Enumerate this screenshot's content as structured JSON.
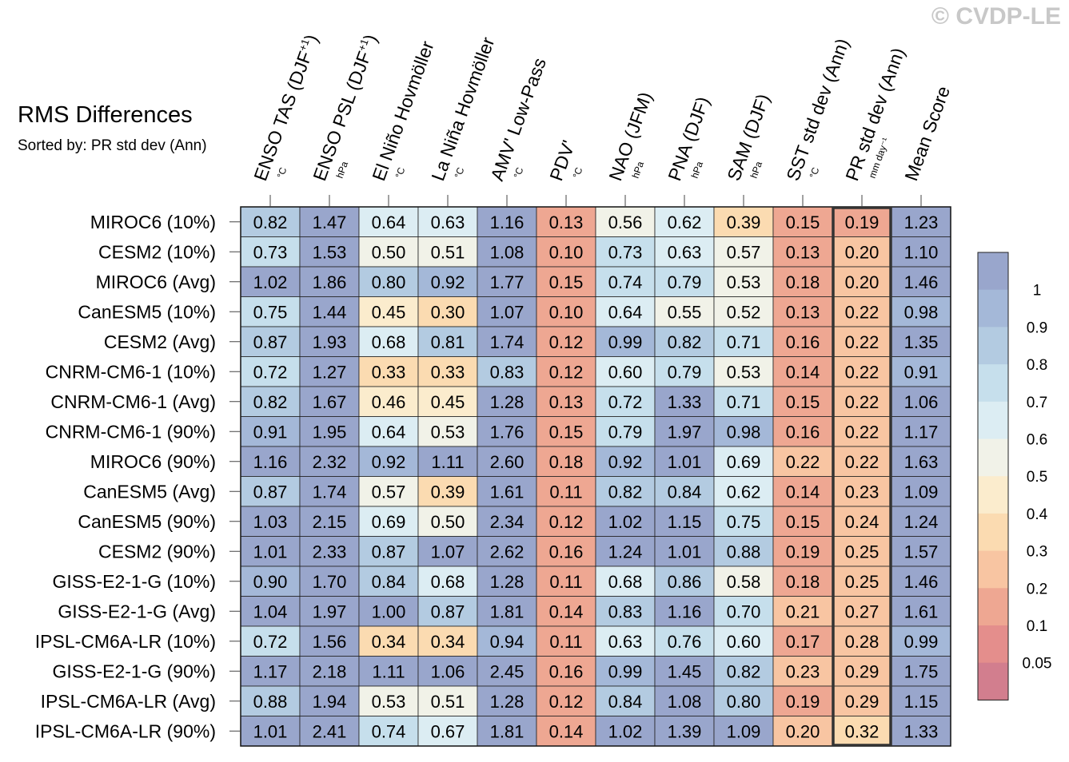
{
  "watermark": "© CVDP-LE",
  "chart_data": {
    "type": "heatmap",
    "title": "RMS Differences",
    "subtitle": "Sorted by: PR std dev (Ann)",
    "columns": [
      {
        "name": "ENSO TAS (DJF",
        "sup": "+1",
        "close": ")",
        "unit": "°C"
      },
      {
        "name": "ENSO PSL (DJF",
        "sup": "+1",
        "close": ")",
        "unit": "hPa"
      },
      {
        "name": "El Niño Hovmöller",
        "sup": "",
        "close": "",
        "unit": "°C"
      },
      {
        "name": "La Niña Hovmöller",
        "sup": "",
        "close": "",
        "unit": "°C"
      },
      {
        "name": "AMV' Low-Pass",
        "sup": "",
        "close": "",
        "unit": "°C"
      },
      {
        "name": "PDV'",
        "sup": "",
        "close": "",
        "unit": "°C"
      },
      {
        "name": "NAO (JFM)",
        "sup": "",
        "close": "",
        "unit": "hPa"
      },
      {
        "name": "PNA (DJF)",
        "sup": "",
        "close": "",
        "unit": "hPa"
      },
      {
        "name": "SAM (DJF)",
        "sup": "",
        "close": "",
        "unit": "hPa"
      },
      {
        "name": "SST std dev (Ann)",
        "sup": "",
        "close": "",
        "unit": "°C"
      },
      {
        "name": "PR std dev (Ann)",
        "sup": "",
        "close": "",
        "unit": "mm day⁻¹"
      },
      {
        "name": "Mean Score",
        "sup": "",
        "close": "",
        "unit": ""
      }
    ],
    "rows": [
      "MIROC6 (10%)",
      "CESM2 (10%)",
      "MIROC6 (Avg)",
      "CanESM5 (10%)",
      "CESM2 (Avg)",
      "CNRM-CM6-1 (10%)",
      "CNRM-CM6-1 (Avg)",
      "CNRM-CM6-1 (90%)",
      "MIROC6 (90%)",
      "CanESM5 (Avg)",
      "CanESM5 (90%)",
      "CESM2 (90%)",
      "GISS-E2-1-G (10%)",
      "GISS-E2-1-G (Avg)",
      "IPSL-CM6A-LR (10%)",
      "GISS-E2-1-G (90%)",
      "IPSL-CM6A-LR (Avg)",
      "IPSL-CM6A-LR (90%)"
    ],
    "values": [
      [
        "0.82",
        "1.47",
        "0.64",
        "0.63",
        "1.16",
        "0.13",
        "0.56",
        "0.62",
        "0.39",
        "0.15",
        "0.19",
        "1.23"
      ],
      [
        "0.73",
        "1.53",
        "0.50",
        "0.51",
        "1.08",
        "0.10",
        "0.73",
        "0.63",
        "0.57",
        "0.13",
        "0.20",
        "1.10"
      ],
      [
        "1.02",
        "1.86",
        "0.80",
        "0.92",
        "1.77",
        "0.15",
        "0.74",
        "0.79",
        "0.53",
        "0.18",
        "0.20",
        "1.46"
      ],
      [
        "0.75",
        "1.44",
        "0.45",
        "0.30",
        "1.07",
        "0.10",
        "0.64",
        "0.55",
        "0.52",
        "0.13",
        "0.22",
        "0.98"
      ],
      [
        "0.87",
        "1.93",
        "0.68",
        "0.81",
        "1.74",
        "0.12",
        "0.99",
        "0.82",
        "0.71",
        "0.16",
        "0.22",
        "1.35"
      ],
      [
        "0.72",
        "1.27",
        "0.33",
        "0.33",
        "0.83",
        "0.12",
        "0.60",
        "0.79",
        "0.53",
        "0.14",
        "0.22",
        "0.91"
      ],
      [
        "0.82",
        "1.67",
        "0.46",
        "0.45",
        "1.28",
        "0.13",
        "0.72",
        "1.33",
        "0.71",
        "0.15",
        "0.22",
        "1.06"
      ],
      [
        "0.91",
        "1.95",
        "0.64",
        "0.53",
        "1.76",
        "0.15",
        "0.79",
        "1.97",
        "0.98",
        "0.16",
        "0.22",
        "1.17"
      ],
      [
        "1.16",
        "2.32",
        "0.92",
        "1.11",
        "2.60",
        "0.18",
        "0.92",
        "1.01",
        "0.69",
        "0.22",
        "0.22",
        "1.63"
      ],
      [
        "0.87",
        "1.74",
        "0.57",
        "0.39",
        "1.61",
        "0.11",
        "0.82",
        "0.84",
        "0.62",
        "0.14",
        "0.23",
        "1.09"
      ],
      [
        "1.03",
        "2.15",
        "0.69",
        "0.50",
        "2.34",
        "0.12",
        "1.02",
        "1.15",
        "0.75",
        "0.15",
        "0.24",
        "1.24"
      ],
      [
        "1.01",
        "2.33",
        "0.87",
        "1.07",
        "2.62",
        "0.16",
        "1.24",
        "1.01",
        "0.88",
        "0.19",
        "0.25",
        "1.57"
      ],
      [
        "0.90",
        "1.70",
        "0.84",
        "0.68",
        "1.28",
        "0.11",
        "0.68",
        "0.86",
        "0.58",
        "0.18",
        "0.25",
        "1.46"
      ],
      [
        "1.04",
        "1.97",
        "1.00",
        "0.87",
        "1.81",
        "0.14",
        "0.83",
        "1.16",
        "0.70",
        "0.21",
        "0.27",
        "1.61"
      ],
      [
        "0.72",
        "1.56",
        "0.34",
        "0.34",
        "0.94",
        "0.11",
        "0.63",
        "0.76",
        "0.60",
        "0.17",
        "0.28",
        "0.99"
      ],
      [
        "1.17",
        "2.18",
        "1.11",
        "1.06",
        "2.45",
        "0.16",
        "0.99",
        "1.45",
        "0.82",
        "0.23",
        "0.29",
        "1.75"
      ],
      [
        "0.88",
        "1.94",
        "0.53",
        "0.51",
        "1.28",
        "0.12",
        "0.84",
        "1.08",
        "0.80",
        "0.19",
        "0.29",
        "1.15"
      ],
      [
        "1.01",
        "2.41",
        "0.74",
        "0.67",
        "1.81",
        "0.14",
        "1.02",
        "1.39",
        "1.09",
        "0.20",
        "0.32",
        "1.33"
      ]
    ],
    "highlight_column": 10,
    "colorbar": {
      "labels": [
        "1",
        "0.9",
        "0.8",
        "0.7",
        "0.6",
        "0.5",
        "0.4",
        "0.3",
        "0.2",
        "0.1",
        "0.05"
      ],
      "colors": [
        "#99a6cc",
        "#a4b8d8",
        "#b3cbe1",
        "#c6dfec",
        "#dcedf3",
        "#f1f2e8",
        "#fbeccd",
        "#fbdbb1",
        "#f8c5a2",
        "#eea792",
        "#e48e8c",
        "#d27e8e"
      ]
    }
  }
}
